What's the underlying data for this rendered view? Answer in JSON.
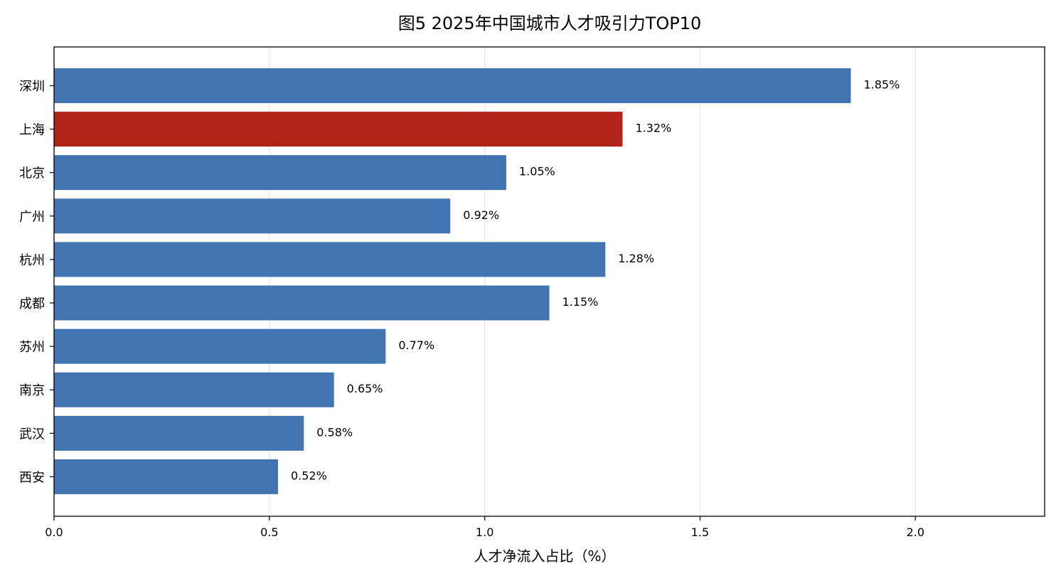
{
  "chart_data": {
    "type": "bar",
    "orientation": "horizontal",
    "title": "图5 2025年中国城市人才吸引力TOP10",
    "xlabel": "人才净流入占比（%）",
    "ylabel": "",
    "categories": [
      "深圳",
      "上海",
      "北京",
      "广州",
      "杭州",
      "成都",
      "苏州",
      "南京",
      "武汉",
      "西安"
    ],
    "values": [
      1.85,
      1.32,
      1.05,
      0.92,
      1.28,
      1.15,
      0.77,
      0.65,
      0.58,
      0.52
    ],
    "value_labels": [
      "1.85%",
      "1.32%",
      "1.05%",
      "0.92%",
      "1.28%",
      "1.15%",
      "0.77%",
      "0.65%",
      "0.58%",
      "0.52%"
    ],
    "highlight_category": "上海",
    "xlim": [
      0,
      2.3
    ],
    "xticks": [
      0.0,
      0.5,
      1.0,
      1.5,
      2.0
    ],
    "xtick_labels": [
      "0.0",
      "0.5",
      "1.0",
      "1.5",
      "2.0"
    ],
    "grid": "x",
    "colors": {
      "bar": "#4275b0",
      "highlight": "#b0241a",
      "grid": "#e6e6e6",
      "axis": "#000000"
    }
  }
}
